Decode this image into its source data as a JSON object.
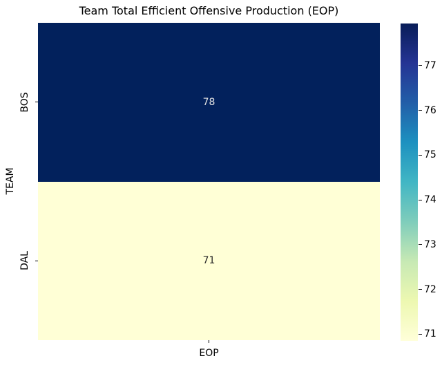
{
  "title": "Team Total Efficient Offensive Production (EOP)",
  "chart_data": {
    "type": "heatmap",
    "title": "Team Total Efficient Offensive Production (EOP)",
    "xlabel": "EOP",
    "ylabel": "TEAM",
    "columns": [
      "EOP"
    ],
    "rows": [
      {
        "team": "BOS",
        "value": 78,
        "label": "78",
        "cell_color": "#02215c",
        "text_color": "#e3e3e3"
      },
      {
        "team": "DAL",
        "value": 71,
        "label": "71",
        "cell_color": "#ffffd6",
        "text_color": "#262626"
      }
    ],
    "colormap": "YlGnBu",
    "colorbar": {
      "position": "right",
      "vmin": 70.85,
      "vmax": 77.94,
      "ticks": [
        77,
        76,
        75,
        74,
        73,
        72,
        71
      ],
      "gradient_stops": [
        "#ffffd9",
        "#edf8b1",
        "#c7e9b4",
        "#7fcdbb",
        "#41b6c4",
        "#1d91c0",
        "#225ea8",
        "#253494",
        "#081d58"
      ]
    },
    "grid": false,
    "background_color": "#ffffff"
  }
}
